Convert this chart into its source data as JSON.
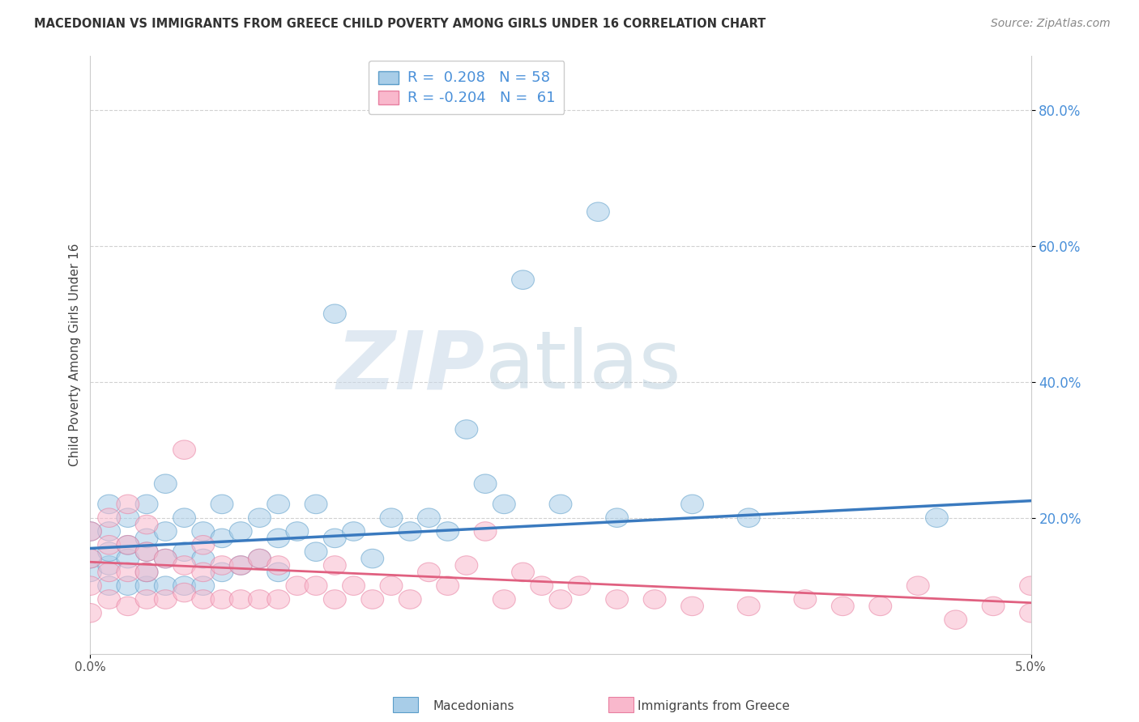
{
  "title": "MACEDONIAN VS IMMIGRANTS FROM GREECE CHILD POVERTY AMONG GIRLS UNDER 16 CORRELATION CHART",
  "source": "Source: ZipAtlas.com",
  "ylabel": "Child Poverty Among Girls Under 16",
  "xlim": [
    0.0,
    0.05
  ],
  "ylim": [
    0.0,
    0.88
  ],
  "ytick_vals": [
    0.2,
    0.4,
    0.6,
    0.8
  ],
  "ytick_labels": [
    "20.0%",
    "40.0%",
    "60.0%",
    "80.0%"
  ],
  "blue_R": 0.208,
  "blue_N": 58,
  "pink_R": -0.204,
  "pink_N": 61,
  "blue_color": "#a8cde8",
  "pink_color": "#f9b8cc",
  "blue_edge_color": "#5b9dc9",
  "pink_edge_color": "#e87fa0",
  "blue_line_color": "#3a7abf",
  "pink_line_color": "#e06080",
  "watermark_zip": "ZIP",
  "watermark_atlas": "atlas",
  "legend_label_blue": "Macedonians",
  "legend_label_pink": "Immigrants from Greece",
  "blue_scatter_x": [
    0.0,
    0.0,
    0.0,
    0.001,
    0.001,
    0.001,
    0.001,
    0.001,
    0.002,
    0.002,
    0.002,
    0.002,
    0.003,
    0.003,
    0.003,
    0.003,
    0.003,
    0.004,
    0.004,
    0.004,
    0.004,
    0.005,
    0.005,
    0.005,
    0.006,
    0.006,
    0.006,
    0.007,
    0.007,
    0.007,
    0.008,
    0.008,
    0.009,
    0.009,
    0.01,
    0.01,
    0.01,
    0.011,
    0.012,
    0.012,
    0.013,
    0.013,
    0.014,
    0.015,
    0.016,
    0.017,
    0.018,
    0.019,
    0.02,
    0.021,
    0.022,
    0.023,
    0.025,
    0.027,
    0.028,
    0.032,
    0.035,
    0.045
  ],
  "blue_scatter_y": [
    0.12,
    0.14,
    0.18,
    0.1,
    0.13,
    0.15,
    0.18,
    0.22,
    0.1,
    0.14,
    0.16,
    0.2,
    0.1,
    0.12,
    0.15,
    0.17,
    0.22,
    0.1,
    0.14,
    0.18,
    0.25,
    0.1,
    0.15,
    0.2,
    0.1,
    0.14,
    0.18,
    0.12,
    0.17,
    0.22,
    0.13,
    0.18,
    0.14,
    0.2,
    0.12,
    0.17,
    0.22,
    0.18,
    0.15,
    0.22,
    0.17,
    0.5,
    0.18,
    0.14,
    0.2,
    0.18,
    0.2,
    0.18,
    0.33,
    0.25,
    0.22,
    0.55,
    0.22,
    0.65,
    0.2,
    0.22,
    0.2,
    0.2
  ],
  "pink_scatter_x": [
    0.0,
    0.0,
    0.0,
    0.0,
    0.001,
    0.001,
    0.001,
    0.001,
    0.002,
    0.002,
    0.002,
    0.002,
    0.003,
    0.003,
    0.003,
    0.003,
    0.004,
    0.004,
    0.005,
    0.005,
    0.005,
    0.006,
    0.006,
    0.006,
    0.007,
    0.007,
    0.008,
    0.008,
    0.009,
    0.009,
    0.01,
    0.01,
    0.011,
    0.012,
    0.013,
    0.013,
    0.014,
    0.015,
    0.016,
    0.017,
    0.018,
    0.019,
    0.02,
    0.021,
    0.022,
    0.023,
    0.024,
    0.025,
    0.026,
    0.028,
    0.03,
    0.032,
    0.035,
    0.038,
    0.04,
    0.042,
    0.044,
    0.046,
    0.048,
    0.05,
    0.05
  ],
  "pink_scatter_y": [
    0.06,
    0.1,
    0.14,
    0.18,
    0.08,
    0.12,
    0.16,
    0.2,
    0.07,
    0.12,
    0.16,
    0.22,
    0.08,
    0.12,
    0.15,
    0.19,
    0.08,
    0.14,
    0.09,
    0.13,
    0.3,
    0.08,
    0.12,
    0.16,
    0.08,
    0.13,
    0.08,
    0.13,
    0.08,
    0.14,
    0.08,
    0.13,
    0.1,
    0.1,
    0.08,
    0.13,
    0.1,
    0.08,
    0.1,
    0.08,
    0.12,
    0.1,
    0.13,
    0.18,
    0.08,
    0.12,
    0.1,
    0.08,
    0.1,
    0.08,
    0.08,
    0.07,
    0.07,
    0.08,
    0.07,
    0.07,
    0.1,
    0.05,
    0.07,
    0.06,
    0.1
  ]
}
